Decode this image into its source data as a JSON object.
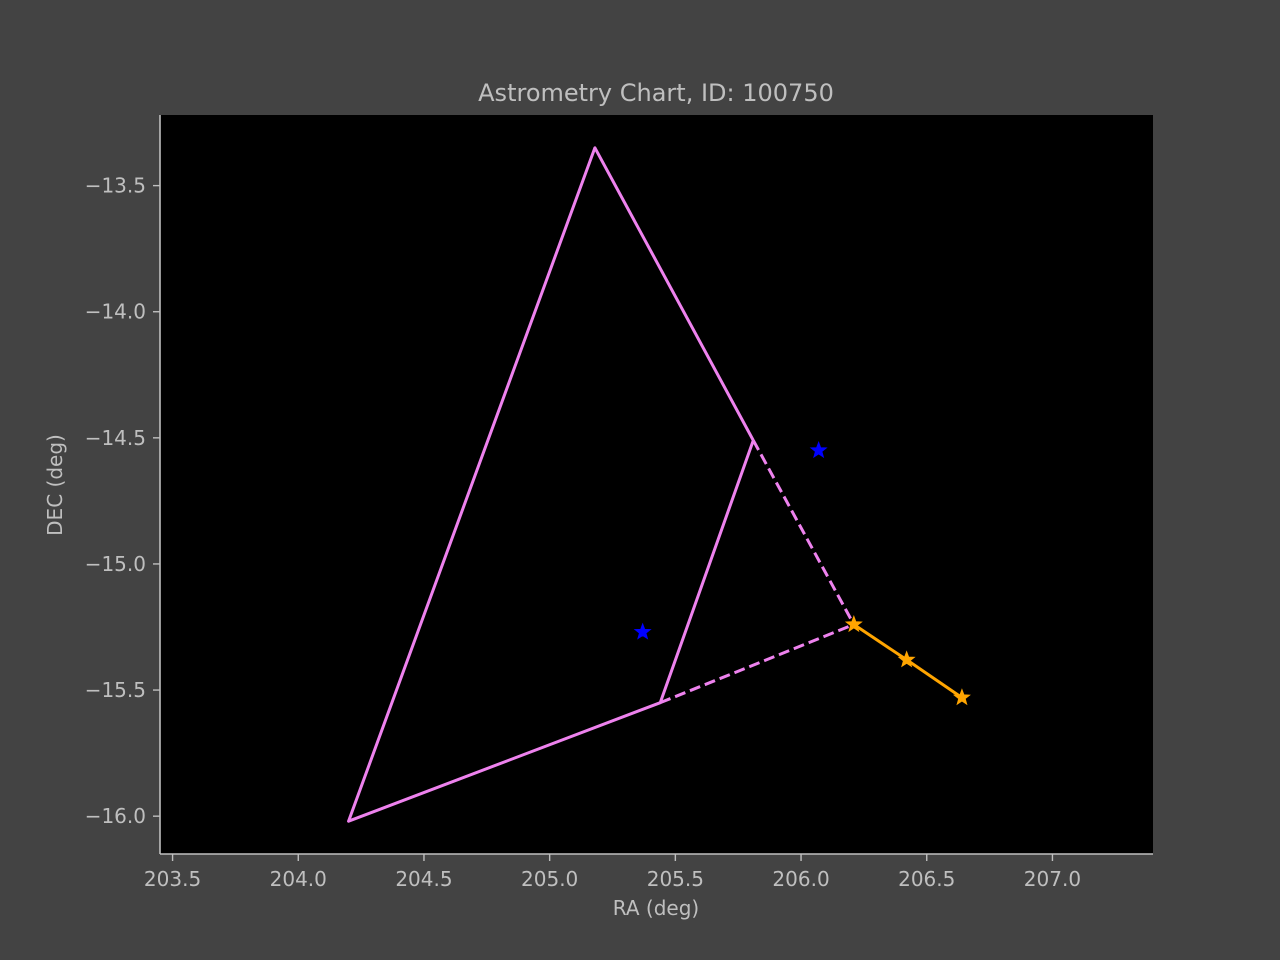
{
  "chart_data": {
    "type": "line",
    "title": "Astrometry Chart, ID: 100750",
    "xlabel": "RA (deg)",
    "ylabel": "DEC (deg)",
    "xlim": [
      203.45,
      207.4
    ],
    "ylim": [
      -16.15,
      -13.22
    ],
    "xticks": [
      203.5,
      204.0,
      204.5,
      205.0,
      205.5,
      206.0,
      206.5,
      207.0
    ],
    "xtick_labels": [
      "203.5",
      "204.0",
      "204.5",
      "205.0",
      "205.5",
      "206.0",
      "206.5",
      "207.0"
    ],
    "yticks": [
      -13.5,
      -14.0,
      -14.5,
      -15.0,
      -15.5,
      -16.0
    ],
    "ytick_labels": [
      "−13.5",
      "−14.0",
      "−14.5",
      "−15.0",
      "−15.5",
      "−16.0"
    ],
    "grid": false,
    "colors": {
      "background": "#434343",
      "plot_area": "#000000",
      "text": "#bfbfbf",
      "axes": "#bfbfbf",
      "violet": "#ee82ee",
      "blue": "#0000ff",
      "orange": "#ffa500"
    },
    "series": [
      {
        "style": "solid",
        "color": "violet",
        "points": [
          [
            205.81,
            -14.51
          ],
          [
            205.18,
            -13.35
          ],
          [
            204.2,
            -16.02
          ],
          [
            205.44,
            -15.55
          ],
          [
            205.81,
            -14.51
          ]
        ]
      },
      {
        "style": "dashed",
        "color": "violet",
        "points": [
          [
            205.81,
            -14.51
          ],
          [
            206.21,
            -15.24
          ]
        ]
      },
      {
        "style": "dashed",
        "color": "violet",
        "points": [
          [
            205.44,
            -15.55
          ],
          [
            206.21,
            -15.24
          ]
        ]
      },
      {
        "style": "solid",
        "color": "orange",
        "marker": "star",
        "points": [
          [
            206.21,
            -15.24
          ],
          [
            206.42,
            -15.38
          ],
          [
            206.64,
            -15.53
          ]
        ]
      },
      {
        "style": "none",
        "color": "blue",
        "marker": "star",
        "points": [
          [
            205.37,
            -15.27
          ],
          [
            206.07,
            -14.55
          ]
        ]
      }
    ]
  }
}
